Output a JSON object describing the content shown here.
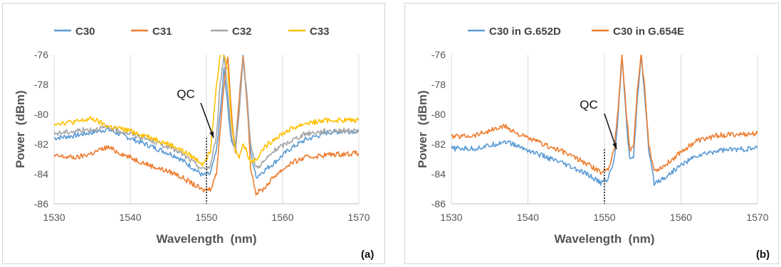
{
  "chart_data": [
    {
      "type": "line",
      "panel_label": "(a)",
      "xlabel": "Wavelength  (nm)",
      "ylabel": "Power  (dBm)",
      "xlim": [
        1530,
        1570
      ],
      "ylim": [
        -86,
        -76
      ],
      "xticks": [
        "1530",
        "1540",
        "1550",
        "1560",
        "1570"
      ],
      "yticks": [
        "-76",
        "-78",
        "-80",
        "-82",
        "-84",
        "-86"
      ],
      "grid": "vertical",
      "legend_position": "top",
      "annotation": {
        "text": "QC",
        "x": 1550
      },
      "series": [
        {
          "name": "C30",
          "color": "#5b9bd5",
          "x": [
            1530,
            1533,
            1535,
            1537,
            1540,
            1543,
            1546,
            1548,
            1549.5,
            1550.5,
            1551.3,
            1551.8,
            1552.3,
            1552.8,
            1553.3,
            1553.8,
            1554.3,
            1554.8,
            1555.3,
            1555.8,
            1556.5,
            1557.5,
            1559,
            1561,
            1563,
            1566,
            1570
          ],
          "y": [
            -81.6,
            -81.4,
            -81.2,
            -81.0,
            -81.6,
            -82.2,
            -82.8,
            -83.5,
            -84.1,
            -84.0,
            -82.5,
            -80,
            -77,
            -79.5,
            -82,
            -82,
            -79,
            -76,
            -79,
            -82.5,
            -84.2,
            -83.8,
            -83.2,
            -82.3,
            -81.7,
            -81.2,
            -81.1
          ]
        },
        {
          "name": "C31",
          "color": "#ed7d31",
          "x": [
            1530,
            1533,
            1535,
            1537,
            1540,
            1543,
            1546,
            1548,
            1549.5,
            1550.5,
            1551.3,
            1551.8,
            1552.3,
            1552.8,
            1553.3,
            1553.8,
            1554.3,
            1554.8,
            1555.3,
            1555.8,
            1556.5,
            1557.5,
            1559,
            1561,
            1563,
            1566,
            1570
          ],
          "y": [
            -82.8,
            -82.9,
            -82.6,
            -82.2,
            -82.9,
            -83.5,
            -84.0,
            -84.6,
            -85.1,
            -85.0,
            -84.0,
            -81,
            -78,
            -76,
            -80,
            -82.5,
            -79,
            -76,
            -79,
            -83.5,
            -85.3,
            -85.0,
            -84.1,
            -83.3,
            -82.9,
            -82.7,
            -82.6
          ]
        },
        {
          "name": "C32",
          "color": "#a5a5a5",
          "x": [
            1530,
            1533,
            1535,
            1537,
            1540,
            1543,
            1546,
            1548,
            1549.5,
            1550.5,
            1551.3,
            1551.8,
            1552.3,
            1552.8,
            1553.3,
            1553.8,
            1554.3,
            1554.8,
            1555.3,
            1555.8,
            1556.5,
            1557.5,
            1559,
            1561,
            1563,
            1566,
            1570
          ],
          "y": [
            -81.3,
            -81.1,
            -81.0,
            -80.9,
            -81.3,
            -81.8,
            -82.4,
            -83.1,
            -83.7,
            -83.5,
            -81.5,
            -78,
            -76,
            -78.5,
            -81.5,
            -82.5,
            -80,
            -76.5,
            -78.5,
            -82,
            -83.6,
            -83.2,
            -82.4,
            -81.8,
            -81.3,
            -81.1,
            -81.1
          ]
        },
        {
          "name": "C33",
          "color": "#ffc000",
          "x": [
            1530,
            1533,
            1535,
            1537,
            1540,
            1543,
            1546,
            1548,
            1549.5,
            1550.5,
            1551.3,
            1551.8,
            1552.3,
            1552.8,
            1553.3,
            1553.8,
            1554.3,
            1554.8,
            1555.3,
            1555.8,
            1556.5,
            1557.5,
            1559,
            1561,
            1563,
            1566,
            1570
          ],
          "y": [
            -80.6,
            -80.5,
            -80.3,
            -80.8,
            -81.1,
            -81.6,
            -82.2,
            -82.8,
            -83.3,
            -82.5,
            -78,
            -76,
            -76,
            -77,
            -80.5,
            -82.5,
            -82.8,
            -82,
            -82.5,
            -83.2,
            -83.0,
            -82.3,
            -81.6,
            -81.0,
            -80.6,
            -80.4,
            -80.4
          ]
        }
      ]
    },
    {
      "type": "line",
      "panel_label": "(b)",
      "xlabel": "Wavelength  (nm)",
      "ylabel": "Power  (dBm)",
      "xlim": [
        1530,
        1570
      ],
      "ylim": [
        -86,
        -76
      ],
      "xticks": [
        "1530",
        "1540",
        "1550",
        "1560",
        "1570"
      ],
      "yticks": [
        "-76",
        "-78",
        "-80",
        "-82",
        "-84",
        "-86"
      ],
      "grid": "vertical",
      "legend_position": "top",
      "annotation": {
        "text": "QC",
        "x": 1550
      },
      "series": [
        {
          "name": "C30 in G.652D",
          "color": "#5b9bd5",
          "x": [
            1530,
            1533,
            1535,
            1537,
            1539,
            1542,
            1545,
            1548,
            1549.5,
            1550.5,
            1551.3,
            1551.8,
            1552.3,
            1552.8,
            1553.3,
            1553.8,
            1554.3,
            1554.8,
            1555.3,
            1555.8,
            1556.5,
            1558,
            1560,
            1562,
            1565,
            1570
          ],
          "y": [
            -82.3,
            -82.3,
            -82.1,
            -81.8,
            -82.2,
            -82.8,
            -83.4,
            -84.1,
            -84.6,
            -84.3,
            -83,
            -80,
            -76,
            -80,
            -83,
            -83,
            -79,
            -76,
            -79,
            -82.5,
            -84.6,
            -84.2,
            -83.4,
            -82.8,
            -82.4,
            -82.3
          ]
        },
        {
          "name": "C30 in G.654E",
          "color": "#ed7d31",
          "x": [
            1530,
            1533,
            1535,
            1537,
            1539,
            1542,
            1545,
            1548,
            1549.5,
            1550.5,
            1551.3,
            1551.8,
            1552.3,
            1552.8,
            1553.3,
            1553.8,
            1554.3,
            1554.8,
            1555.3,
            1555.8,
            1556.5,
            1558,
            1560,
            1562,
            1565,
            1570
          ],
          "y": [
            -81.5,
            -81.4,
            -81.1,
            -80.8,
            -81.4,
            -82.0,
            -82.6,
            -83.4,
            -83.9,
            -83.6,
            -82.3,
            -79.5,
            -76,
            -79.5,
            -82.3,
            -82.3,
            -78.5,
            -76,
            -78.5,
            -82,
            -83.8,
            -83.4,
            -82.5,
            -81.8,
            -81.4,
            -81.3
          ]
        }
      ]
    }
  ]
}
